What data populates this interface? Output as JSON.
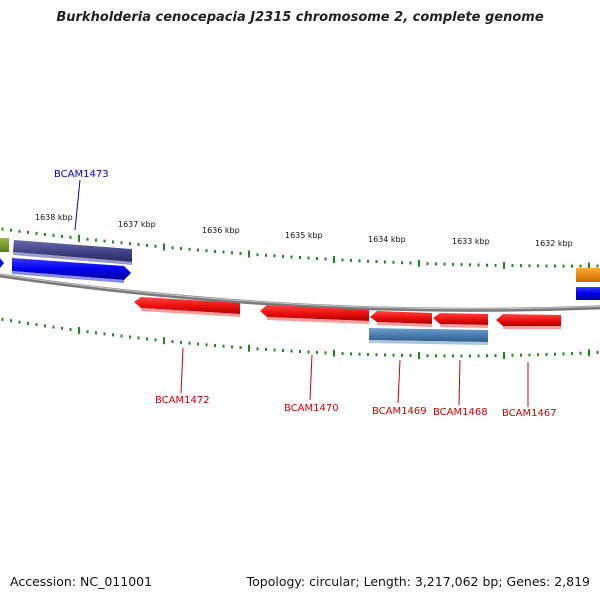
{
  "title": "Burkholderia cenocepacia J2315 chromosome 2, complete genome",
  "accession_text": "Accession: NC_011001",
  "summary_text": "Topology: circular; Length: 3,217,062 bp; Genes: 2,819",
  "scale": {
    "unit": "kbp",
    "tick_labels": [
      "1638 kbp",
      "1637 kbp",
      "1636 kbp",
      "1635 kbp",
      "1634 kbp",
      "1633 kbp",
      "1632 kbp"
    ]
  },
  "genes": [
    {
      "id": "BCAM1473",
      "label": "BCAM1473",
      "strand": "forward",
      "color": "#0000cc",
      "label_color": "#0000cc"
    },
    {
      "id": "BCAM1472",
      "label": "BCAM1472",
      "strand": "reverse",
      "color": "#ee1111",
      "label_color": "#cc0000"
    },
    {
      "id": "BCAM1470",
      "label": "BCAM1470",
      "strand": "reverse",
      "color": "#ee1111",
      "label_color": "#cc0000"
    },
    {
      "id": "BCAM1469",
      "label": "BCAM1469",
      "strand": "reverse",
      "color": "#ee1111",
      "label_color": "#cc0000"
    },
    {
      "id": "BCAM1468",
      "label": "BCAM1468",
      "strand": "reverse",
      "color": "#ee1111",
      "label_color": "#cc0000"
    },
    {
      "id": "BCAM1467",
      "label": "BCAM1467",
      "strand": "reverse",
      "color": "#ee1111",
      "label_color": "#cc0000"
    }
  ],
  "colors": {
    "backbone": "#8a8a8a",
    "tick": "#1a8a1a",
    "forward_cds": "#0000ee",
    "reverse_cds": "#ee1111",
    "other_feature_purple": "#4a4a88",
    "other_feature_steelblue": "#4a7eb0",
    "edge_olive": "#7a9a2a",
    "edge_orange": "#ee8800"
  }
}
